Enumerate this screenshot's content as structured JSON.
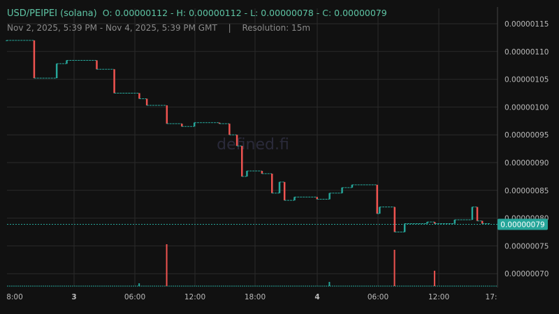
{
  "header": {
    "pair": "USD/PEIPEI (solana)",
    "ohlc": "O: 0.00000112 - H: 0.00000112 - L: 0.00000078 - C: 0.00000079",
    "range": "Nov 2, 2025, 5:39 PM - Nov 4, 2025, 5:39 PM GMT",
    "separator": "|",
    "resolution": "Resolution: 15m"
  },
  "watermark": "defined.fi",
  "colors": {
    "up": "#26a69a",
    "down": "#ef5350",
    "background": "#111111",
    "grid": "#2a2a2a",
    "last_price": "#26a69a"
  },
  "chart_data": {
    "type": "candlestick",
    "y_ticks": [
      "0.00000115",
      "0.00000110",
      "0.00000105",
      "0.00000100",
      "0.00000095",
      "0.00000090",
      "0.00000085",
      "0.00000080",
      "0.00000075",
      "0.00000070"
    ],
    "ylim": [
      6.75e-07,
      1.175e-06
    ],
    "x_ticks": [
      "8:00",
      "3",
      "06:00",
      "12:00",
      "18:00",
      "4",
      "06:00",
      "12:00",
      "17:"
    ],
    "last_price": "0.00000079",
    "grid": true,
    "price_steps": [
      [
        "11-02 17:15",
        1.12
      ],
      [
        "11-02 20:00",
        1.052
      ],
      [
        "11-02 22:15",
        1.078
      ],
      [
        "11-02 23:15",
        1.084
      ],
      [
        "11-03 02:15",
        1.068
      ],
      [
        "11-03 04:00",
        1.025
      ],
      [
        "11-03 06:30",
        1.015
      ],
      [
        "11-03 07:15",
        1.003
      ],
      [
        "11-03 09:15",
        0.97
      ],
      [
        "11-03 10:45",
        0.965
      ],
      [
        "11-03 12:00",
        0.972
      ],
      [
        "11-03 14:30",
        0.97
      ],
      [
        "11-03 15:30",
        0.95
      ],
      [
        "11-03 16:15",
        0.93
      ],
      [
        "11-03 16:45",
        0.875
      ],
      [
        "11-03 17:15",
        0.885
      ],
      [
        "11-03 18:45",
        0.88
      ],
      [
        "11-03 19:45",
        0.845
      ],
      [
        "11-03 20:30",
        0.865
      ],
      [
        "11-03 21:00",
        0.832
      ],
      [
        "11-03 22:00",
        0.838
      ],
      [
        "11-04 00:15",
        0.834
      ],
      [
        "11-04 01:30",
        0.845
      ],
      [
        "11-04 02:45",
        0.855
      ],
      [
        "11-04 03:45",
        0.86
      ],
      [
        "11-04 06:15",
        0.808
      ],
      [
        "11-04 06:30",
        0.82
      ],
      [
        "11-04 08:00",
        0.775
      ],
      [
        "11-04 09:00",
        0.79
      ],
      [
        "11-04 11:15",
        0.793
      ],
      [
        "11-04 12:00",
        0.79
      ],
      [
        "11-04 14:00",
        0.797
      ],
      [
        "11-04 15:45",
        0.82
      ],
      [
        "11-04 16:15",
        0.795
      ],
      [
        "11-04 16:45",
        0.79
      ]
    ],
    "price_unit_note": "values ×1e-6",
    "volume_spikes": [
      [
        "11-03 09:15",
        60
      ],
      [
        "11-04 08:00",
        52
      ],
      [
        "11-04 12:00",
        22
      ],
      [
        "11-03 06:30",
        4
      ],
      [
        "11-04 01:30",
        6
      ]
    ]
  }
}
